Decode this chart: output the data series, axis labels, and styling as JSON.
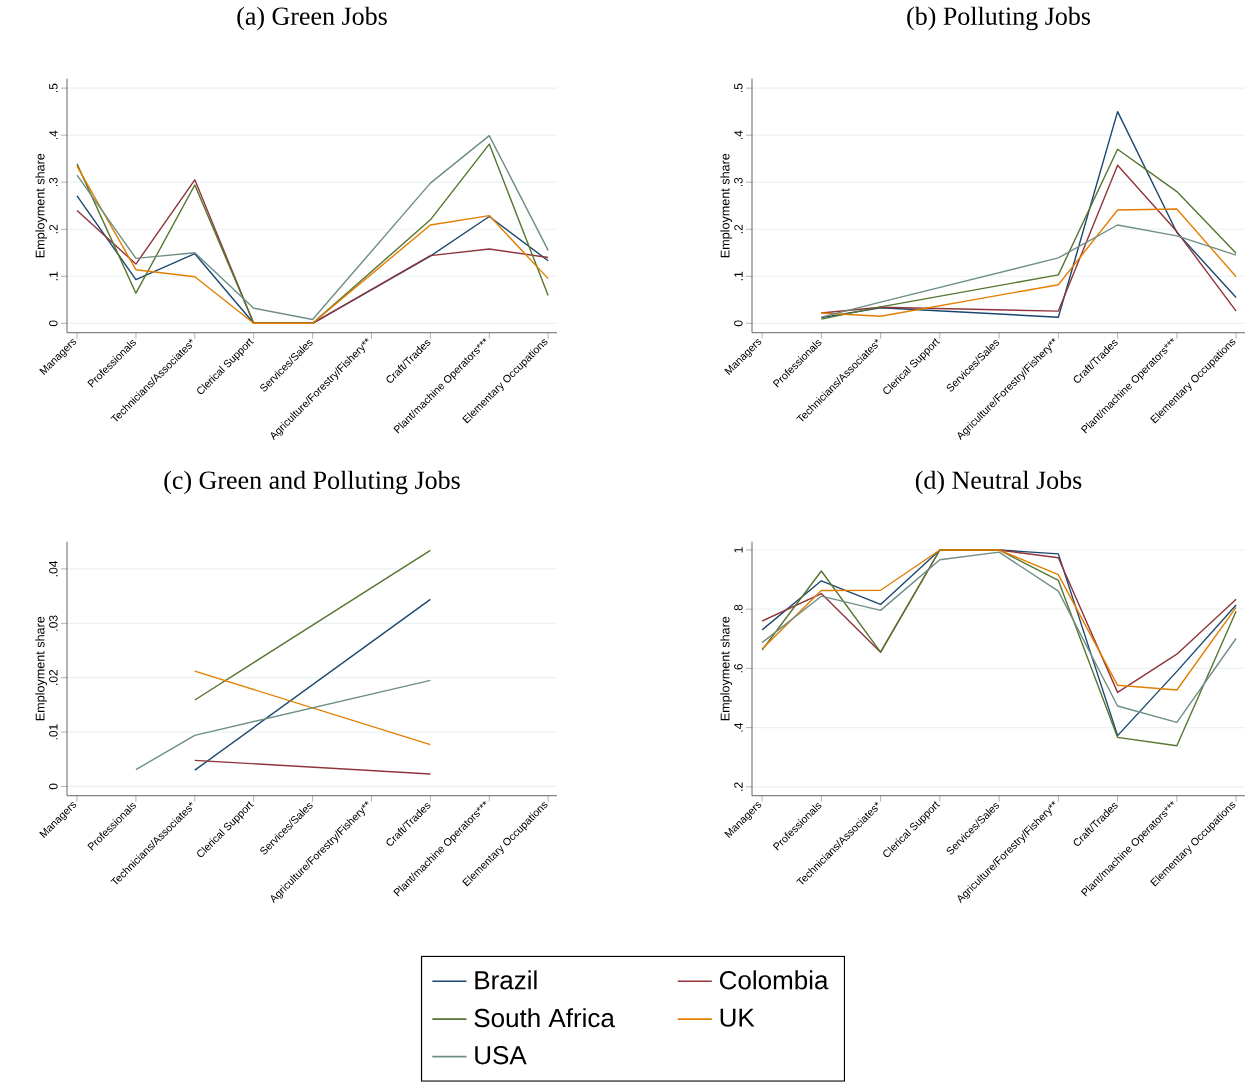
{
  "chart_data": [
    {
      "type": "line",
      "title": "(a) Green Jobs",
      "ylabel": "Employment share",
      "categories": [
        "Managers",
        "Professionals",
        "Technicians/Associates*",
        "Clerical Support",
        "Services/Sales",
        "Agriculture/Forestry/Fishery**",
        "Craft/Trades",
        "Plant/machine Operators***",
        "Elementary Occupations"
      ],
      "ylim": [
        -0.02,
        0.52
      ],
      "yticks": [
        0,
        {
          "value": 0.1,
          "label": ".1"
        },
        {
          "value": 0.2,
          "label": ".2"
        },
        {
          "value": 0.3,
          "label": ".3"
        },
        {
          "value": 0.4,
          "label": ".4"
        },
        {
          "value": 0.5,
          "label": ".5"
        }
      ],
      "grid": "y",
      "marker": "none",
      "line_style": "solid",
      "series": [
        {
          "color": "#1a476f",
          "values": [
            0.271,
            0.093,
            0.148,
            0,
            0,
            null,
            0.143,
            0.227,
            0.133
          ]
        },
        {
          "color": "#90353b",
          "values": [
            0.24,
            0.126,
            0.305,
            0,
            0,
            null,
            0.144,
            0.158,
            0.14
          ]
        },
        {
          "color": "#55752f",
          "values": [
            0.339,
            0.064,
            0.294,
            0,
            0,
            null,
            0.22,
            0.381,
            0.059
          ]
        },
        {
          "color": "#e37e00",
          "values": [
            0.334,
            0.114,
            0.099,
            0,
            0,
            null,
            0.209,
            0.229,
            0.095
          ]
        },
        {
          "color": "#6e8e84",
          "values": [
            0.315,
            0.138,
            0.15,
            0.032,
            0.008,
            null,
            0.298,
            0.399,
            0.155
          ]
        }
      ]
    },
    {
      "type": "line",
      "title": "(b) Polluting Jobs",
      "ylabel": "Employment share",
      "categories": [
        "Managers",
        "Professionals",
        "Technicians/Associates*",
        "Clerical Support",
        "Services/Sales",
        "Agriculture/Forestry/Fishery**",
        "Craft/Trades",
        "Plant/machine Operators***",
        "Elementary Occupations"
      ],
      "ylim": [
        -0.02,
        0.52
      ],
      "yticks": [
        0,
        {
          "value": 0.1,
          "label": ".1"
        },
        {
          "value": 0.2,
          "label": ".2"
        },
        {
          "value": 0.3,
          "label": ".3"
        },
        {
          "value": 0.4,
          "label": ".4"
        },
        {
          "value": 0.5,
          "label": ".5"
        }
      ],
      "grid": "y",
      "marker": "none",
      "line_style": "solid",
      "series": [
        {
          "color": "#1a476f",
          "values": [
            null,
            0.012,
            0.033,
            null,
            null,
            0.013,
            0.45,
            0.193,
            0.055
          ]
        },
        {
          "color": "#90353b",
          "values": [
            null,
            0.022,
            0.034,
            null,
            null,
            0.026,
            0.336,
            0.195,
            0.026
          ]
        },
        {
          "color": "#55752f",
          "values": [
            null,
            0.009,
            0.035,
            null,
            null,
            0.103,
            0.37,
            0.28,
            0.149
          ]
        },
        {
          "color": "#e37e00",
          "values": [
            null,
            0.022,
            0.015,
            null,
            null,
            0.082,
            0.241,
            0.243,
            0.099
          ]
        },
        {
          "color": "#6e8e84",
          "values": [
            null,
            0.013,
            0.045,
            null,
            null,
            0.139,
            0.209,
            0.186,
            0.145
          ]
        }
      ]
    },
    {
      "type": "line",
      "title": "(c) Green and Polluting Jobs",
      "ylabel": "Employment share",
      "categories": [
        "Managers",
        "Professionals",
        "Technicians/Associates*",
        "Clerical Support",
        "Services/Sales",
        "Agriculture/Forestry/Fishery**",
        "Craft/Trades",
        "Plant/machine Operators***",
        "Elementary Occupations"
      ],
      "ylim": [
        -0.0017,
        0.045
      ],
      "yticks": [
        0,
        {
          "value": 0.01,
          "label": ".01"
        },
        {
          "value": 0.02,
          "label": ".02"
        },
        {
          "value": 0.03,
          "label": ".03"
        },
        {
          "value": 0.04,
          "label": ".04"
        }
      ],
      "grid": "y",
      "marker": "none",
      "line_style": "solid",
      "series": [
        {
          "color": "#1a476f",
          "values": [
            null,
            null,
            0.003,
            null,
            null,
            null,
            0.0344,
            null,
            null
          ]
        },
        {
          "color": "#90353b",
          "values": [
            null,
            null,
            0.0048,
            null,
            null,
            null,
            0.0023,
            null,
            null
          ]
        },
        {
          "color": "#55752f",
          "values": [
            null,
            null,
            0.0159,
            null,
            null,
            null,
            0.0434,
            null,
            null
          ]
        },
        {
          "color": "#e37e00",
          "values": [
            null,
            null,
            0.0212,
            null,
            null,
            null,
            0.0077,
            null,
            null
          ]
        },
        {
          "color": "#6e8e84",
          "values": [
            null,
            0.0031,
            0.0094,
            null,
            null,
            null,
            0.0195,
            null,
            null
          ]
        }
      ]
    },
    {
      "type": "line",
      "title": "(d) Neutral Jobs",
      "ylabel": "Employment share",
      "categories": [
        "Managers",
        "Professionals",
        "Technicians/Associates*",
        "Clerical Support",
        "Services/Sales",
        "Agriculture/Forestry/Fishery**",
        "Craft/Trades",
        "Plant/machine Operators***",
        "Elementary Occupations"
      ],
      "ylim": [
        0.17,
        1.028
      ],
      "yticks": [
        {
          "value": 0.2,
          "label": ".2"
        },
        {
          "value": 0.4,
          "label": ".4"
        },
        {
          "value": 0.6,
          "label": ".6"
        },
        {
          "value": 0.8,
          "label": ".8"
        },
        1
      ],
      "grid": "y",
      "marker": "none",
      "line_style": "solid",
      "legend": "bottom",
      "series": [
        {
          "name": "Brazil",
          "color": "#1a476f",
          "values": [
            0.73,
            0.896,
            0.816,
            1.0,
            1.0,
            0.987,
            0.373,
            0.59,
            0.814
          ]
        },
        {
          "name": "Colombia",
          "color": "#90353b",
          "values": [
            0.76,
            0.853,
            0.655,
            1.0,
            1.0,
            0.974,
            0.519,
            0.648,
            0.834
          ]
        },
        {
          "name": "South Africa",
          "color": "#55752f",
          "values": [
            0.662,
            0.929,
            0.655,
            1.0,
            1.0,
            0.897,
            0.367,
            0.339,
            0.793
          ]
        },
        {
          "name": "UK",
          "color": "#e37e00",
          "values": [
            0.666,
            0.863,
            0.864,
            1.0,
            1.0,
            0.917,
            0.543,
            0.527,
            0.806
          ]
        },
        {
          "name": "USA",
          "color": "#6e8e84",
          "values": [
            0.687,
            0.844,
            0.796,
            0.967,
            0.993,
            0.861,
            0.473,
            0.418,
            0.701
          ]
        }
      ]
    }
  ]
}
